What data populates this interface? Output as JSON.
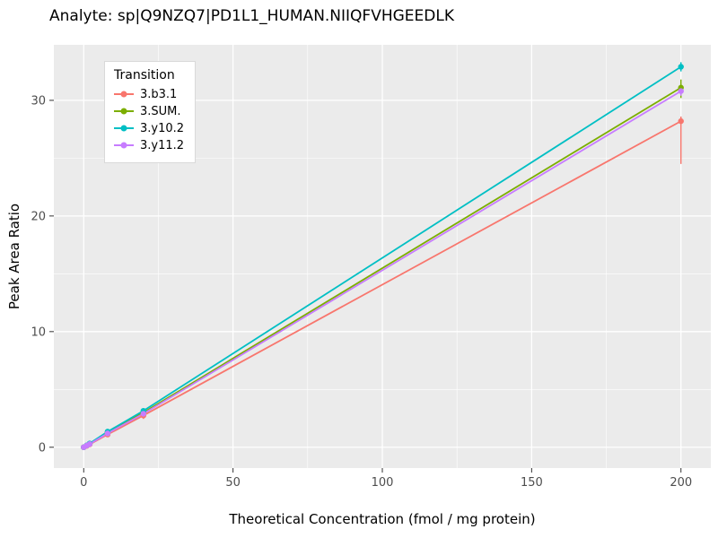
{
  "chart_data": {
    "type": "line",
    "title": "Analyte: sp|Q9NZQ7|PD1L1_HUMAN.NIIQFVHGEEDLK",
    "xlabel": "Theoretical Concentration (fmol / mg protein)",
    "ylabel": "Peak Area Ratio",
    "legend_title": "Transition",
    "legend_position": "top-left-inside",
    "panel_bg": "#EBEBEB",
    "grid_color": "#FFFFFF",
    "tick_label_color": "#4D4D4D",
    "xlim": [
      -10,
      210
    ],
    "ylim": [
      -1.8,
      34.8
    ],
    "x_ticks": [
      0,
      50,
      100,
      150,
      200
    ],
    "y_ticks": [
      0,
      10,
      20,
      30
    ],
    "grid": "major+minor",
    "x": [
      0,
      1,
      2,
      8,
      20,
      200
    ],
    "series": [
      {
        "name": "3.b3.1",
        "color": "#F8766D",
        "values": [
          0,
          0.12,
          0.25,
          1.1,
          2.75,
          28.2
        ],
        "error_minus": [
          0,
          0,
          0,
          0,
          0.3,
          3.7
        ],
        "error_plus": [
          0,
          0,
          0,
          0,
          0.3,
          0.4
        ]
      },
      {
        "name": "3.SUM.",
        "color": "#7CAE00",
        "values": [
          0,
          0.15,
          0.3,
          1.3,
          3.0,
          31.1
        ],
        "error_minus": [
          0,
          0,
          0,
          0,
          0.35,
          0.9
        ],
        "error_plus": [
          0,
          0,
          0,
          0,
          0.35,
          0.7
        ]
      },
      {
        "name": "3.y10.2",
        "color": "#00BFC4",
        "values": [
          0,
          0.16,
          0.33,
          1.35,
          3.15,
          32.9
        ],
        "error_minus": [
          0,
          0,
          0,
          0,
          0.2,
          0.4
        ],
        "error_plus": [
          0,
          0,
          0,
          0,
          0.2,
          0.4
        ]
      },
      {
        "name": "3.y11.2",
        "color": "#C77CFF",
        "values": [
          0,
          0.14,
          0.28,
          1.2,
          2.9,
          30.8
        ],
        "error_minus": [
          0,
          0,
          0,
          0,
          0.25,
          0.4
        ],
        "error_plus": [
          0,
          0,
          0,
          0,
          0.25,
          0.4
        ]
      }
    ]
  }
}
